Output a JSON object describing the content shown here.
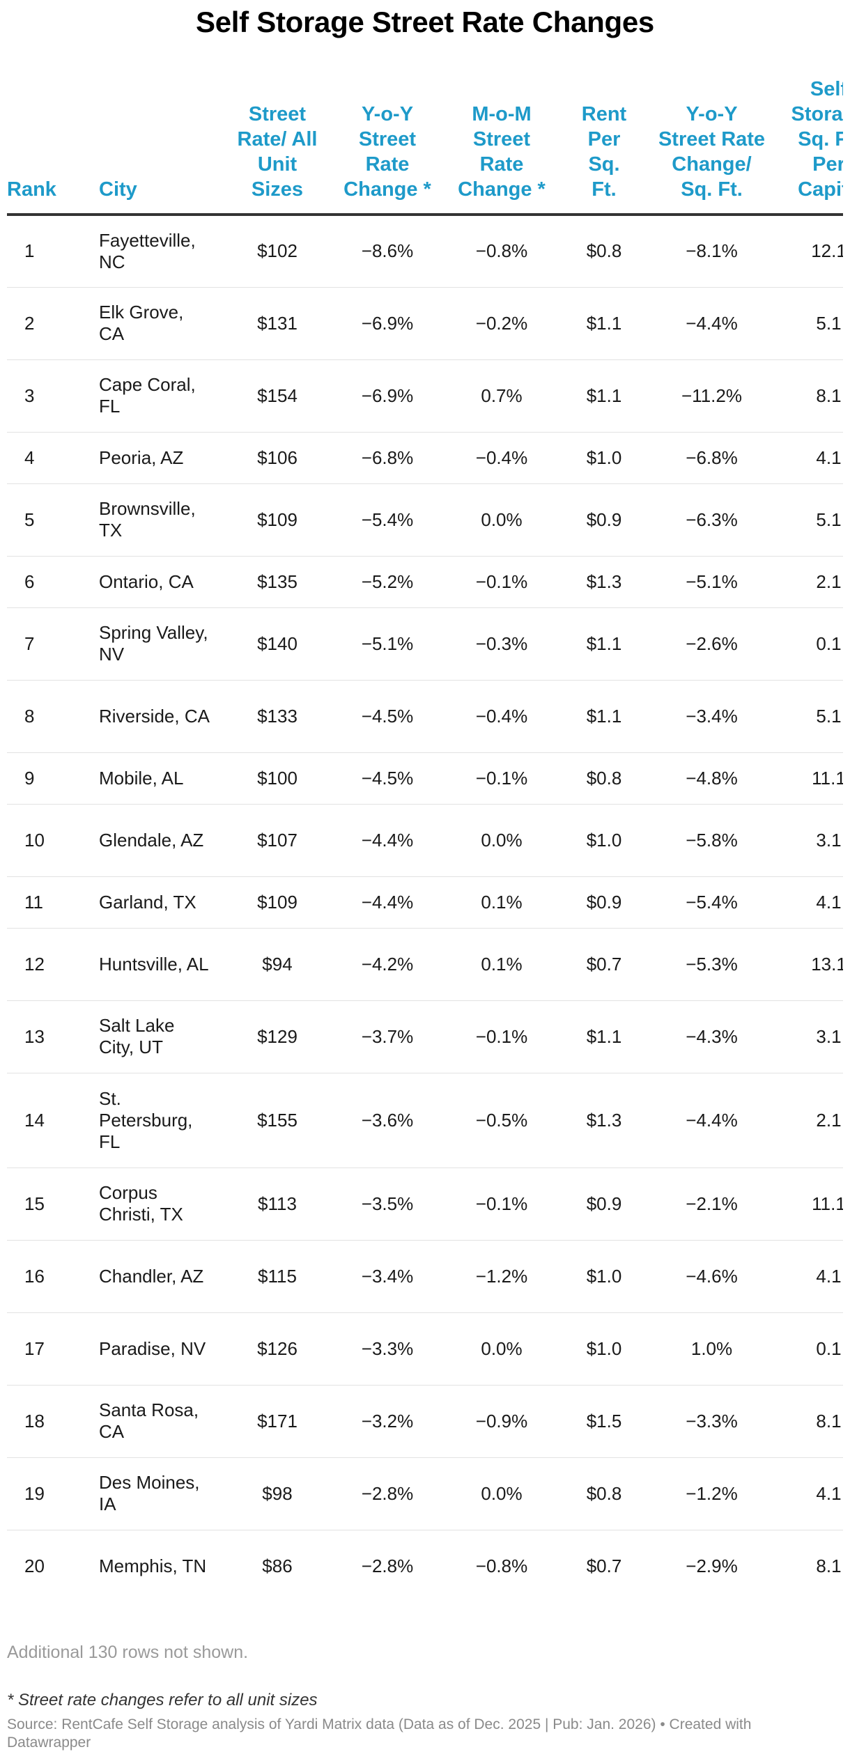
{
  "title": "Self Storage Street Rate Changes",
  "headers": [
    "Rank",
    "City",
    "Street Rate/ All Unit Sizes",
    "Y-o-Y Street Rate Change *",
    "M-o-M Street Rate Change *",
    "Rent Per Sq. Ft.",
    "Y-o-Y Street Rate Change/ Sq. Ft.",
    "Self Storage Sq. Ft. Per Capita"
  ],
  "rows": [
    {
      "rank": "1",
      "city": "Fayetteville, NC",
      "rate": "$102",
      "yoy": "−8.6%",
      "mom": "−0.8%",
      "psf": "$0.8",
      "yoy_sf": "−8.1%",
      "cap": "12.1"
    },
    {
      "rank": "2",
      "city": "Elk Grove, CA",
      "rate": "$131",
      "yoy": "−6.9%",
      "mom": "−0.2%",
      "psf": "$1.1",
      "yoy_sf": "−4.4%",
      "cap": "5.1"
    },
    {
      "rank": "3",
      "city": "Cape Coral, FL",
      "rate": "$154",
      "yoy": "−6.9%",
      "mom": "0.7%",
      "psf": "$1.1",
      "yoy_sf": "−11.2%",
      "cap": "8.1"
    },
    {
      "rank": "4",
      "city": "Peoria, AZ",
      "rate": "$106",
      "yoy": "−6.8%",
      "mom": "−0.4%",
      "psf": "$1.0",
      "yoy_sf": "−6.8%",
      "cap": "4.1"
    },
    {
      "rank": "5",
      "city": "Brownsville, TX",
      "rate": "$109",
      "yoy": "−5.4%",
      "mom": "0.0%",
      "psf": "$0.9",
      "yoy_sf": "−6.3%",
      "cap": "5.1"
    },
    {
      "rank": "6",
      "city": "Ontario, CA",
      "rate": "$135",
      "yoy": "−5.2%",
      "mom": "−0.1%",
      "psf": "$1.3",
      "yoy_sf": "−5.1%",
      "cap": "2.1"
    },
    {
      "rank": "7",
      "city": "Spring Valley, NV",
      "rate": "$140",
      "yoy": "−5.1%",
      "mom": "−0.3%",
      "psf": "$1.1",
      "yoy_sf": "−2.6%",
      "cap": "0.1"
    },
    {
      "rank": "8",
      "city": "Riverside, CA",
      "rate": "$133",
      "yoy": "−4.5%",
      "mom": "−0.4%",
      "psf": "$1.1",
      "yoy_sf": "−3.4%",
      "cap": "5.1"
    },
    {
      "rank": "9",
      "city": "Mobile, AL",
      "rate": "$100",
      "yoy": "−4.5%",
      "mom": "−0.1%",
      "psf": "$0.8",
      "yoy_sf": "−4.8%",
      "cap": "11.1"
    },
    {
      "rank": "10",
      "city": "Glendale, AZ",
      "rate": "$107",
      "yoy": "−4.4%",
      "mom": "0.0%",
      "psf": "$1.0",
      "yoy_sf": "−5.8%",
      "cap": "3.1"
    },
    {
      "rank": "11",
      "city": "Garland, TX",
      "rate": "$109",
      "yoy": "−4.4%",
      "mom": "0.1%",
      "psf": "$0.9",
      "yoy_sf": "−5.4%",
      "cap": "4.1"
    },
    {
      "rank": "12",
      "city": "Huntsville, AL",
      "rate": "$94",
      "yoy": "−4.2%",
      "mom": "0.1%",
      "psf": "$0.7",
      "yoy_sf": "−5.3%",
      "cap": "13.1"
    },
    {
      "rank": "13",
      "city": "Salt Lake City, UT",
      "rate": "$129",
      "yoy": "−3.7%",
      "mom": "−0.1%",
      "psf": "$1.1",
      "yoy_sf": "−4.3%",
      "cap": "3.1"
    },
    {
      "rank": "14",
      "city": "St. Petersburg, FL",
      "rate": "$155",
      "yoy": "−3.6%",
      "mom": "−0.5%",
      "psf": "$1.3",
      "yoy_sf": "−4.4%",
      "cap": "2.1"
    },
    {
      "rank": "15",
      "city": "Corpus Christi, TX",
      "rate": "$113",
      "yoy": "−3.5%",
      "mom": "−0.1%",
      "psf": "$0.9",
      "yoy_sf": "−2.1%",
      "cap": "11.1"
    },
    {
      "rank": "16",
      "city": "Chandler, AZ",
      "rate": "$115",
      "yoy": "−3.4%",
      "mom": "−1.2%",
      "psf": "$1.0",
      "yoy_sf": "−4.6%",
      "cap": "4.1"
    },
    {
      "rank": "17",
      "city": "Paradise, NV",
      "rate": "$126",
      "yoy": "−3.3%",
      "mom": "0.0%",
      "psf": "$1.0",
      "yoy_sf": "1.0%",
      "cap": "0.1"
    },
    {
      "rank": "18",
      "city": "Santa Rosa, CA",
      "rate": "$171",
      "yoy": "−3.2%",
      "mom": "−0.9%",
      "psf": "$1.5",
      "yoy_sf": "−3.3%",
      "cap": "8.1"
    },
    {
      "rank": "19",
      "city": "Des Moines, IA",
      "rate": "$98",
      "yoy": "−2.8%",
      "mom": "0.0%",
      "psf": "$0.8",
      "yoy_sf": "−1.2%",
      "cap": "4.1"
    },
    {
      "rank": "20",
      "city": "Memphis, TN",
      "rate": "$86",
      "yoy": "−2.8%",
      "mom": "−0.8%",
      "psf": "$0.7",
      "yoy_sf": "−2.9%",
      "cap": "8.1"
    }
  ],
  "more_rows_note": "Additional 130 rows not shown.",
  "footnote": "* Street rate changes refer to all unit sizes",
  "source": "Source: RentCafe Self Storage analysis of Yardi Matrix data (Data as of Dec. 2025 | Pub: Jan. 2026) • Created with Datawrapper",
  "colors": {
    "header": "#1e9ac9",
    "rule": "#333333",
    "row_border": "#e2e2e2",
    "muted": "#9a9a9a"
  }
}
